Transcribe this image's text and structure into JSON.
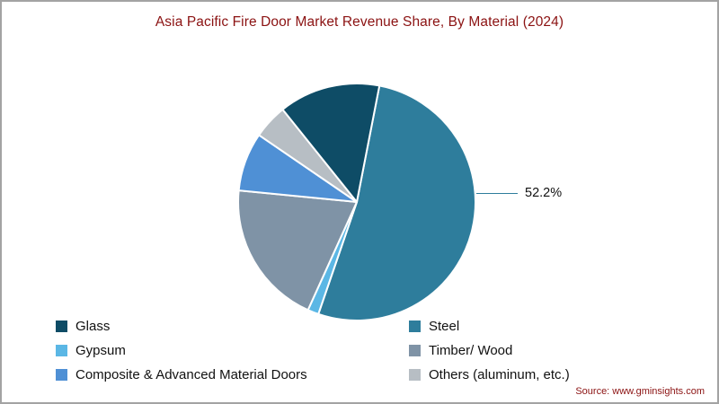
{
  "chart_data": {
    "type": "pie",
    "title": "Asia Pacific Fire Door Market Revenue Share, By Material (2024)",
    "start_angle_deg_from_top": 11,
    "slices": [
      {
        "label": "Steel",
        "value": 52.2,
        "color": "#2e7d9c"
      },
      {
        "label": "Gypsum",
        "value": 1.5,
        "color": "#5bb7e5"
      },
      {
        "label": "Timber/ Wood",
        "value": 19.8,
        "color": "#7f93a6"
      },
      {
        "label": "Composite & Advanced Material Doors",
        "value": 8.0,
        "color": "#4f90d5"
      },
      {
        "label": "Others (aluminum, etc.)",
        "value": 4.7,
        "color": "#b7bec4"
      },
      {
        "label": "Glass",
        "value": 13.8,
        "color": "#0e4c66"
      }
    ],
    "annotation": {
      "text": "52.2%",
      "target_slice": "Steel"
    },
    "legend_position": "bottom",
    "legend_columns": [
      [
        "Glass",
        "Gypsum",
        "Composite & Advanced Material Doors"
      ],
      [
        "Steel",
        "Timber/ Wood",
        "Others (aluminum, etc.)"
      ]
    ]
  },
  "source_note": "Source: www.gminsights.com",
  "colors": {
    "title": "#8b1212",
    "source": "#8b1212",
    "text": "#111111",
    "leader_line": "#2e7d9c",
    "frame_border": "#a3a3a3",
    "slice_separator": "#ffffff"
  }
}
